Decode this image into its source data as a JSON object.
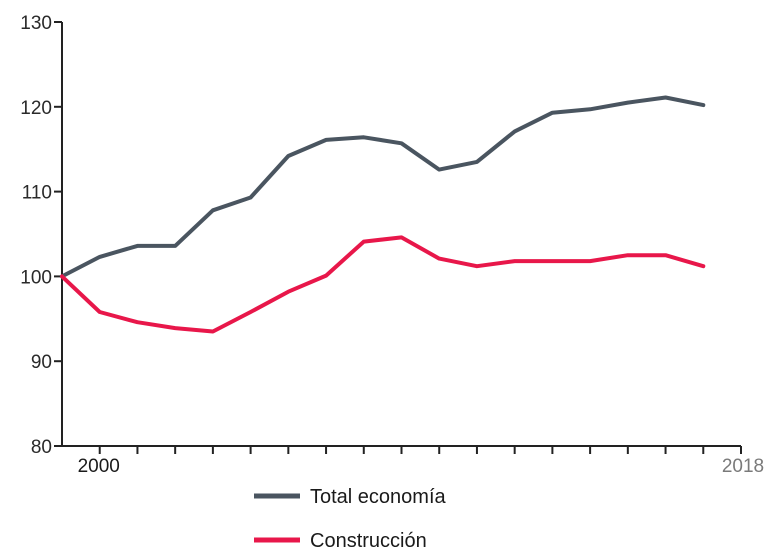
{
  "chart_data": {
    "type": "line",
    "title": "",
    "xlabel": "",
    "ylabel": "",
    "x": [
      2000,
      2001,
      2002,
      2003,
      2004,
      2005,
      2006,
      2007,
      2008,
      2009,
      2010,
      2011,
      2012,
      2013,
      2014,
      2015,
      2016,
      2017,
      2018
    ],
    "ylim": [
      80,
      130
    ],
    "yticks": [
      80,
      90,
      100,
      110,
      120,
      130
    ],
    "ytick_labels": [
      "80",
      "90",
      "100",
      "110",
      "120",
      "130"
    ],
    "xtick_labels": [
      {
        "x": 2000,
        "label": "2000",
        "color": "#1a1a1a"
      },
      {
        "x": 2018,
        "label": "2018",
        "color": "#7a7a7a"
      }
    ],
    "grid": false,
    "legend_position": "bottom",
    "series": [
      {
        "name": "Total economía",
        "color": "#4a5560",
        "values": [
          100,
          102.3,
          103.6,
          103.6,
          107.8,
          109.3,
          114.2,
          116.1,
          116.4,
          115.7,
          112.6,
          113.5,
          117.1,
          119.3,
          119.7,
          120.5,
          121.1,
          120.2,
          null
        ]
      },
      {
        "name": "Construcción",
        "color": "#e8174a",
        "values": [
          100,
          95.8,
          94.6,
          93.9,
          93.5,
          95.8,
          98.2,
          100.1,
          104.1,
          104.6,
          102.1,
          101.2,
          101.8,
          101.8,
          101.8,
          102.5,
          102.5,
          101.2,
          null
        ]
      }
    ]
  }
}
